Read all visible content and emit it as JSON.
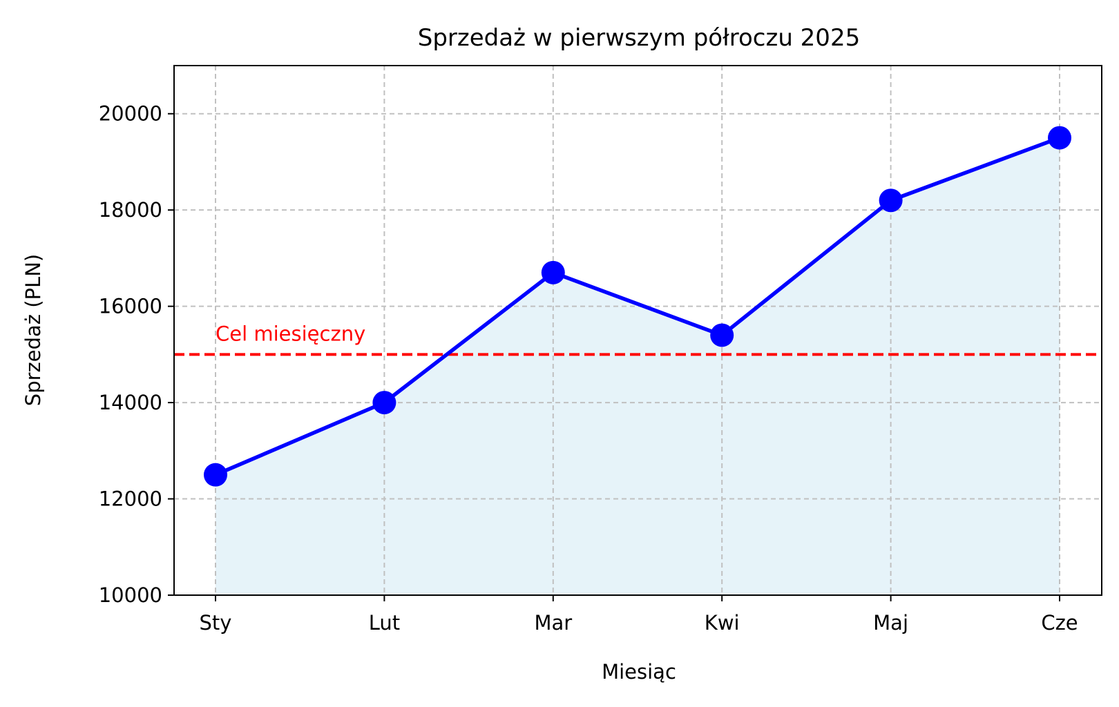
{
  "chart_data": {
    "type": "area",
    "title": "Sprzedaż w pierwszym półroczu 2025",
    "xlabel": "Miesiąc",
    "ylabel": "Sprzedaż (PLN)",
    "categories": [
      "Sty",
      "Lut",
      "Mar",
      "Kwi",
      "Maj",
      "Cze"
    ],
    "series": [
      {
        "values": [
          12500,
          14000,
          16700,
          15400,
          18200,
          19500
        ],
        "color": "#0000ff",
        "fill_color": "#e6f3f9",
        "marker": "circle"
      }
    ],
    "ylim": [
      10000,
      21000
    ],
    "yticks": [
      10000,
      12000,
      14000,
      16000,
      18000,
      20000
    ],
    "grid": true,
    "target_line": {
      "value": 15000,
      "label": "Cel miesięczny",
      "color": "#ff0000",
      "style": "dashed"
    }
  }
}
